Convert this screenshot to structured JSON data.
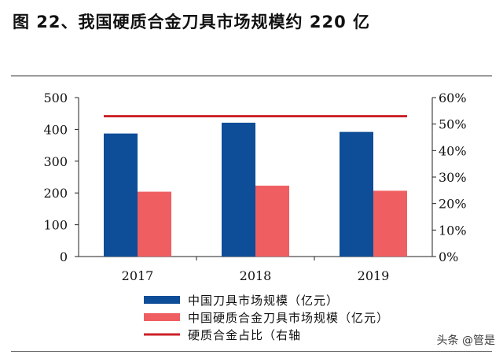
{
  "figure_title": "图 22、我国硬质合金刀具市场规模约 220 亿",
  "watermark": "头条 @管是",
  "colors": {
    "series_bar_1": "#0e4d98",
    "series_bar_2": "#ef5f62",
    "series_line": "#cc2229",
    "axis": "#222222"
  },
  "chart_data": {
    "type": "bar",
    "categories": [
      "2017",
      "2018",
      "2019"
    ],
    "series": [
      {
        "name": "中国刀具市场规模（亿元）",
        "type": "bar",
        "axis": "left",
        "values": [
          387,
          421,
          392
        ]
      },
      {
        "name": "中国硬质合金刀具市场规模（亿元）",
        "type": "bar",
        "axis": "left",
        "values": [
          204,
          223,
          207
        ]
      },
      {
        "name": "硬质合金占比（右轴",
        "type": "line",
        "axis": "right",
        "values": [
          0.53,
          0.53,
          0.53
        ]
      }
    ],
    "ylim": [
      0,
      500
    ],
    "y_ticks": [
      "0",
      "100",
      "200",
      "300",
      "400",
      "500"
    ],
    "y2lim": [
      0,
      0.6
    ],
    "y2_ticks": [
      "0%",
      "10%",
      "20%",
      "30%",
      "40%",
      "50%",
      "60%"
    ],
    "legend_position": "bottom",
    "grid": false
  }
}
